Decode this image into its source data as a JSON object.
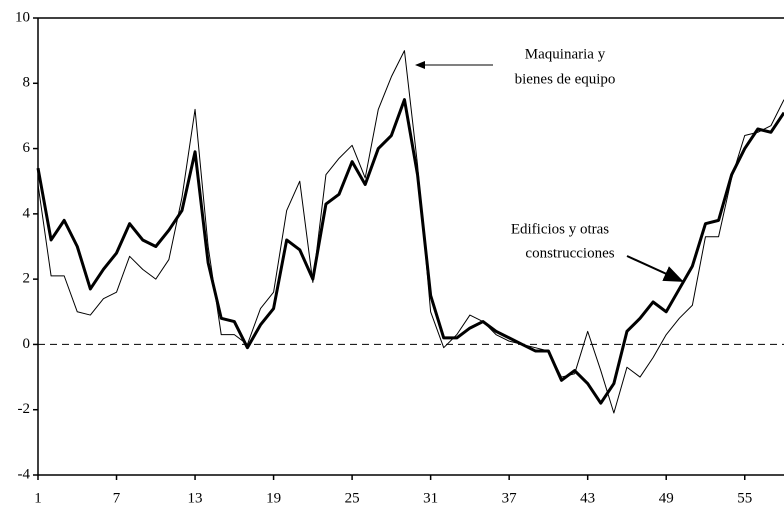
{
  "chart_data": {
    "type": "line",
    "x": [
      1,
      2,
      3,
      4,
      5,
      6,
      7,
      8,
      9,
      10,
      11,
      12,
      13,
      14,
      15,
      16,
      17,
      18,
      19,
      20,
      21,
      22,
      23,
      24,
      25,
      26,
      27,
      28,
      29,
      30,
      31,
      32,
      33,
      34,
      35,
      36,
      37,
      38,
      39,
      40,
      41,
      42,
      43,
      44,
      45,
      46,
      47,
      48,
      49,
      50,
      51,
      52,
      53,
      54,
      55,
      56,
      57,
      58
    ],
    "series": [
      {
        "color": "#000000",
        "width": 1,
        "values": [
          4.9,
          2.1,
          2.1,
          1.0,
          0.9,
          1.4,
          1.6,
          2.7,
          2.3,
          2.0,
          2.6,
          4.5,
          7.2,
          3.0,
          0.3,
          0.3,
          0.0,
          1.1,
          1.6,
          4.1,
          5.0,
          1.9,
          5.2,
          5.7,
          6.1,
          5.1,
          7.2,
          8.2,
          9.0,
          5.5,
          1.0,
          -0.1,
          0.3,
          0.9,
          0.7,
          0.3,
          0.1,
          0.0,
          -0.1,
          -0.2,
          -1.0,
          -0.9,
          0.4,
          -0.8,
          -2.1,
          -0.7,
          -1.0,
          -0.4,
          0.3,
          0.8,
          1.2,
          3.3,
          3.3,
          5.1,
          6.4,
          6.5,
          6.7,
          7.5
        ]
      },
      {
        "color": "#000000",
        "width": 3,
        "values": [
          5.4,
          3.2,
          3.8,
          3.0,
          1.7,
          2.3,
          2.8,
          3.7,
          3.2,
          3.0,
          3.5,
          4.1,
          5.9,
          2.5,
          0.8,
          0.7,
          -0.1,
          0.6,
          1.1,
          3.2,
          2.9,
          2.0,
          4.3,
          4.6,
          5.6,
          4.9,
          6.0,
          6.4,
          7.5,
          5.2,
          1.5,
          0.2,
          0.2,
          0.5,
          0.7,
          0.4,
          0.2,
          0.0,
          -0.2,
          -0.2,
          -1.1,
          -0.8,
          -1.2,
          -1.8,
          -1.2,
          0.4,
          0.8,
          1.3,
          1.0,
          1.7,
          2.4,
          3.7,
          3.8,
          5.2,
          6.0,
          6.6,
          6.5,
          7.1
        ]
      }
    ],
    "xlim": [
      1,
      58
    ],
    "ylim": [
      -4,
      10
    ],
    "xticks": [
      1,
      7,
      13,
      19,
      25,
      31,
      37,
      43,
      49,
      55
    ],
    "yticks": [
      -4,
      -2,
      0,
      2,
      4,
      6,
      8,
      10
    ],
    "reference_line": 0,
    "annotations": [
      {
        "lines": [
          "Maquinaria y",
          "bienes de equipo"
        ]
      },
      {
        "lines": [
          "Edificios y otras",
          "construcciones"
        ]
      }
    ]
  }
}
